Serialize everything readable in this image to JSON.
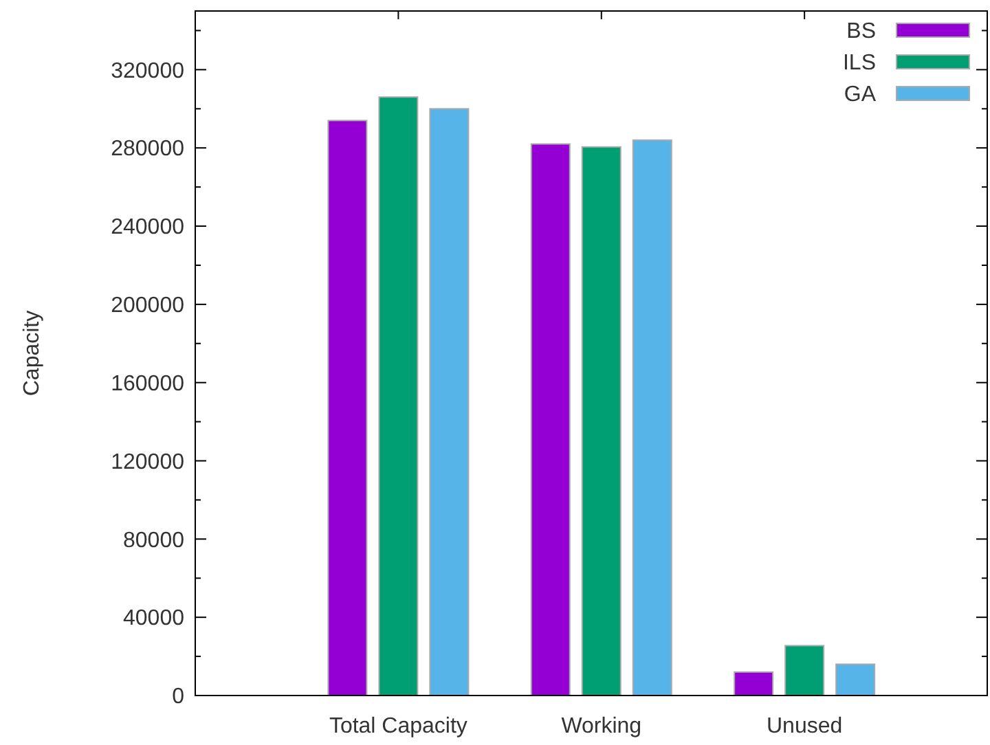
{
  "chart_data": {
    "type": "bar",
    "ylabel": "Capacity",
    "categories": [
      "Total Capacity",
      "Working",
      "Unused"
    ],
    "series": [
      {
        "name": "BS",
        "color": "#9400d3",
        "values": [
          294000,
          282000,
          12000
        ]
      },
      {
        "name": "ILS",
        "color": "#009e73",
        "values": [
          306000,
          280500,
          25500
        ]
      },
      {
        "name": "GA",
        "color": "#56b4e9",
        "values": [
          300000,
          284000,
          16000
        ]
      }
    ],
    "ylim": [
      0,
      350000
    ],
    "yticks": [
      0,
      {
        "value": 20000,
        "label": null
      },
      40000,
      {
        "value": 60000,
        "label": null
      },
      80000,
      {
        "value": 100000,
        "label": null
      },
      120000,
      {
        "value": 140000,
        "label": null
      },
      160000,
      {
        "value": 180000,
        "label": null
      },
      200000,
      {
        "value": 220000,
        "label": null
      },
      240000,
      {
        "value": 260000,
        "label": null
      },
      280000,
      {
        "value": 300000,
        "label": null
      },
      320000,
      {
        "value": 340000,
        "label": null
      }
    ],
    "grid": false,
    "legend": "top right"
  }
}
